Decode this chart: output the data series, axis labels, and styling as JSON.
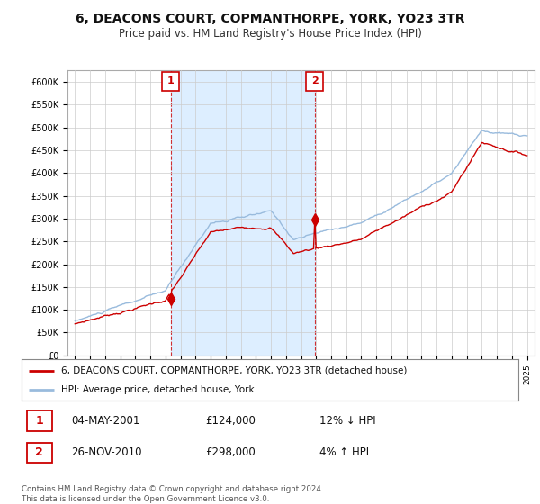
{
  "title": "6, DEACONS COURT, COPMANTHORPE, YORK, YO23 3TR",
  "subtitle": "Price paid vs. HM Land Registry's House Price Index (HPI)",
  "title_fontsize": 10,
  "subtitle_fontsize": 8.5,
  "ylim": [
    0,
    625000
  ],
  "yticks": [
    0,
    50000,
    100000,
    150000,
    200000,
    250000,
    300000,
    350000,
    400000,
    450000,
    500000,
    550000,
    600000
  ],
  "ytick_labels": [
    "£0",
    "£50K",
    "£100K",
    "£150K",
    "£200K",
    "£250K",
    "£300K",
    "£350K",
    "£400K",
    "£450K",
    "£500K",
    "£550K",
    "£600K"
  ],
  "xlim_start": 1994.5,
  "xlim_end": 2025.5,
  "xticks": [
    1995,
    1996,
    1997,
    1998,
    1999,
    2000,
    2001,
    2002,
    2003,
    2004,
    2005,
    2006,
    2007,
    2008,
    2009,
    2010,
    2011,
    2012,
    2013,
    2014,
    2015,
    2016,
    2017,
    2018,
    2019,
    2020,
    2021,
    2022,
    2023,
    2024,
    2025
  ],
  "line_color_property": "#cc0000",
  "line_color_hpi": "#99bbdd",
  "background_color": "#ffffff",
  "plot_bg_color": "#ffffff",
  "shade_color": "#ddeeff",
  "grid_color": "#cccccc",
  "legend_label_property": "6, DEACONS COURT, COPMANTHORPE, YORK, YO23 3TR (detached house)",
  "legend_label_hpi": "HPI: Average price, detached house, York",
  "sale1_year": 2001.35,
  "sale1_price": 124000,
  "sale2_year": 2010.9,
  "sale2_price": 298000,
  "table_sale1": [
    "1",
    "04-MAY-2001",
    "£124,000",
    "12% ↓ HPI"
  ],
  "table_sale2": [
    "2",
    "26-NOV-2010",
    "£298,000",
    "4% ↑ HPI"
  ],
  "footer": "Contains HM Land Registry data © Crown copyright and database right 2024.\nThis data is licensed under the Open Government Licence v3.0."
}
